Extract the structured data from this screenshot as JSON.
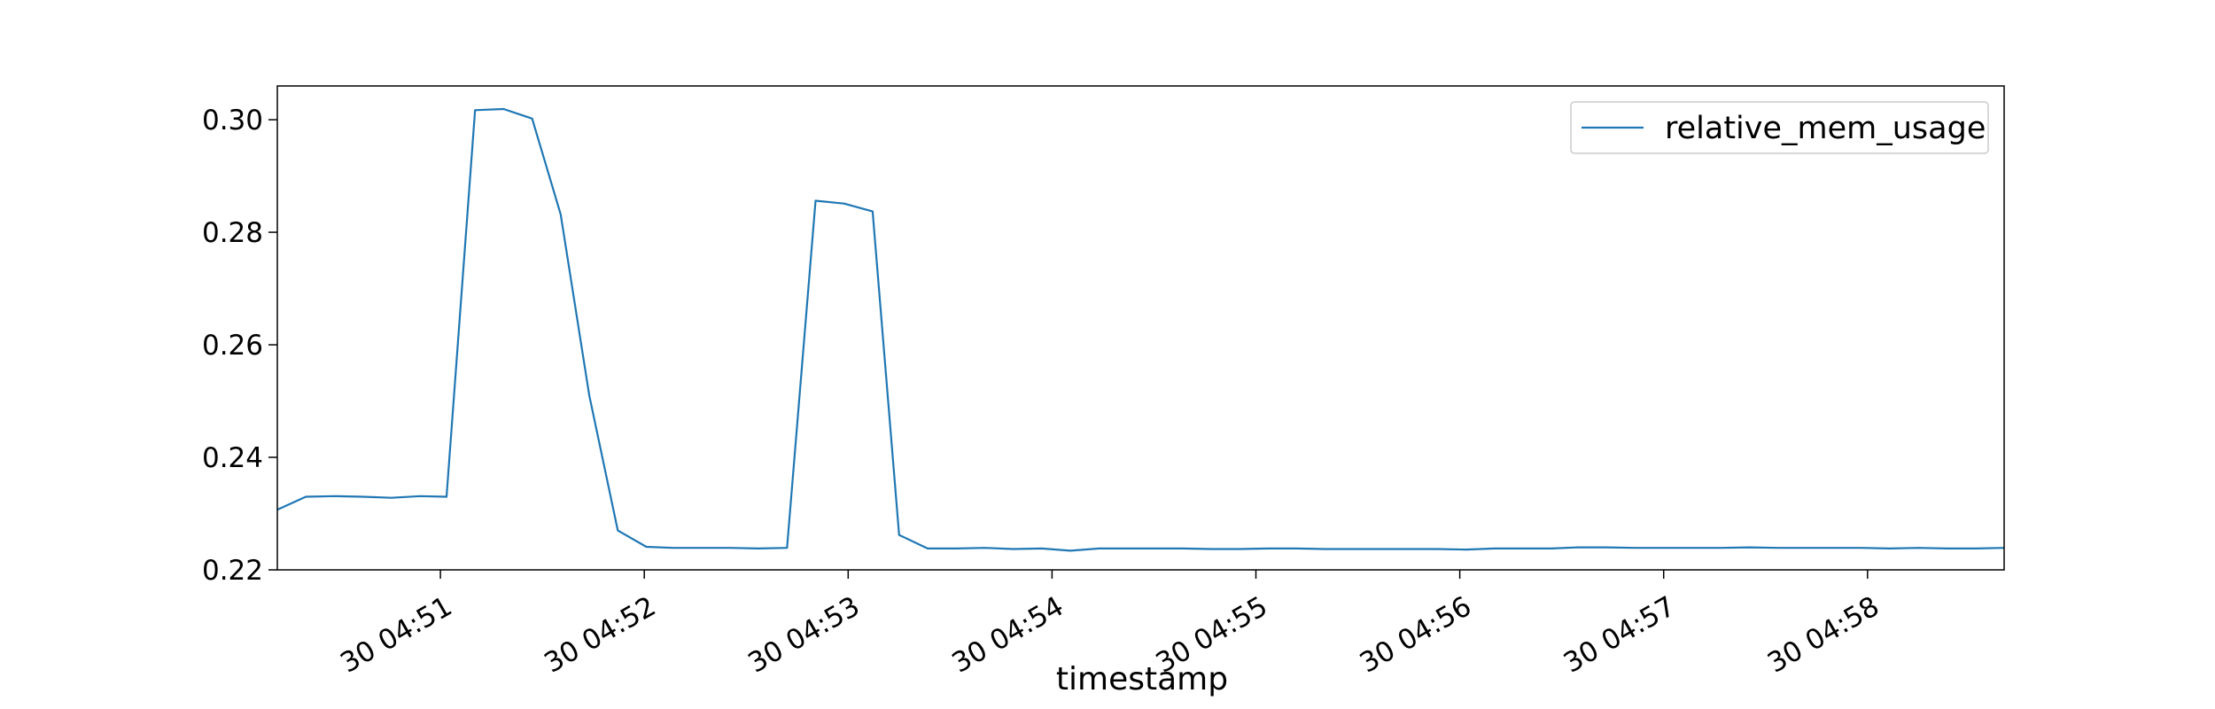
{
  "chart_data": {
    "type": "line",
    "title": "",
    "xlabel": "timestamp",
    "ylabel": "",
    "ylim": [
      0.22,
      0.306
    ],
    "xlim_minutes": [
      50.2,
      58.67
    ],
    "grid": false,
    "legend_position": "top-right",
    "line_color": "#1f77b4",
    "y_ticks": [
      "0.22",
      "0.24",
      "0.26",
      "0.28",
      "0.30"
    ],
    "y_tick_values": [
      0.22,
      0.24,
      0.26,
      0.28,
      0.3
    ],
    "x_tick_labels": [
      "30 04:51",
      "30 04:52",
      "30 04:53",
      "30 04:54",
      "30 04:55",
      "30 04:56",
      "30 04:57",
      "30 04:58"
    ],
    "x_tick_minutes": [
      51,
      52,
      53,
      54,
      55,
      56,
      57,
      58
    ],
    "series": [
      {
        "name": "relative_mem_usage",
        "x_minutes": [
          50.2,
          50.34,
          50.48,
          50.62,
          50.76,
          50.9,
          51.03,
          51.17,
          51.31,
          51.45,
          51.59,
          51.73,
          51.87,
          52.01,
          52.14,
          52.28,
          52.42,
          52.56,
          52.7,
          52.84,
          52.98,
          53.12,
          53.25,
          53.39,
          53.53,
          53.67,
          53.81,
          53.95,
          54.09,
          54.23,
          54.36,
          54.5,
          54.64,
          54.78,
          54.92,
          55.06,
          55.2,
          55.34,
          55.47,
          55.61,
          55.75,
          55.89,
          56.03,
          56.17,
          56.31,
          56.45,
          56.58,
          56.72,
          56.86,
          57.0,
          57.14,
          57.28,
          57.42,
          57.56,
          57.69,
          57.83,
          57.97,
          58.11,
          58.25,
          58.39,
          58.53,
          58.67
        ],
        "values": [
          0.2307,
          0.233,
          0.2331,
          0.233,
          0.2328,
          0.2331,
          0.233,
          0.3017,
          0.3019,
          0.3002,
          0.2832,
          0.251,
          0.227,
          0.2241,
          0.2239,
          0.2239,
          0.2239,
          0.2238,
          0.2239,
          0.2856,
          0.2851,
          0.2837,
          0.2262,
          0.2238,
          0.2238,
          0.2239,
          0.2237,
          0.2238,
          0.2234,
          0.2238,
          0.2238,
          0.2238,
          0.2238,
          0.2237,
          0.2237,
          0.2238,
          0.2238,
          0.2237,
          0.2237,
          0.2237,
          0.2237,
          0.2237,
          0.2236,
          0.2238,
          0.2238,
          0.2238,
          0.224,
          0.224,
          0.2239,
          0.2239,
          0.2239,
          0.2239,
          0.224,
          0.2239,
          0.2239,
          0.2239,
          0.2239,
          0.2238,
          0.2239,
          0.2238,
          0.2238,
          0.2239
        ]
      }
    ]
  }
}
